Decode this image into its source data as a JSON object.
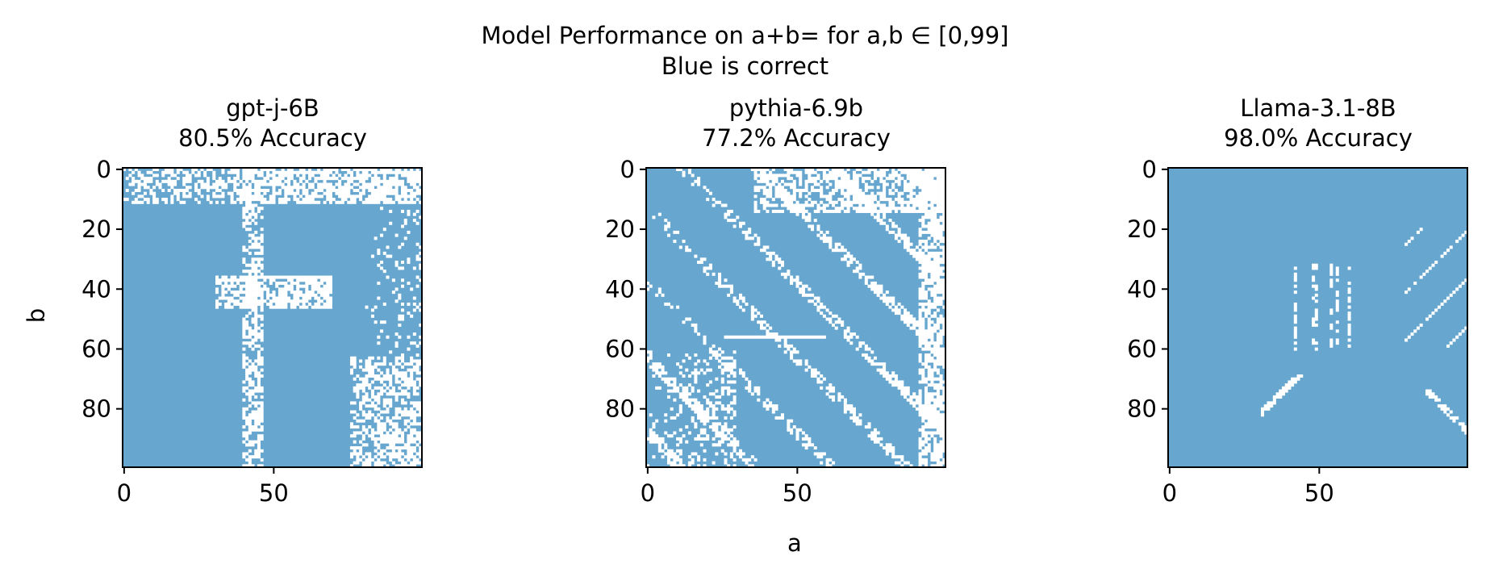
{
  "figure": {
    "suptitle_line1": "Model Performance on a+b= for a,b ∈ [0,99]",
    "suptitle_line2": "Blue is correct",
    "xlabel": "a",
    "ylabel": "b"
  },
  "colors": {
    "correct": "#67a7cf",
    "incorrect": "#ffffff",
    "axes": "#000000"
  },
  "chart_data": [
    {
      "type": "heatmap",
      "title_line1": "gpt-j-6B",
      "title_line2": "80.5% Accuracy",
      "accuracy": 0.805,
      "grid_size": 100,
      "x_ticks": [
        0,
        50
      ],
      "y_ticks": [
        0,
        20,
        40,
        60,
        80
      ],
      "xlim": [
        0,
        99
      ],
      "ylim": [
        99,
        0
      ],
      "pattern": "scattered white cells, densest in upper rows and upper-right, vertical streak near a=42"
    },
    {
      "type": "heatmap",
      "title_line1": "pythia-6.9b",
      "title_line2": "77.2% Accuracy",
      "accuracy": 0.772,
      "grid_size": 100,
      "x_ticks": [
        0,
        50
      ],
      "y_ticks": [
        0,
        20,
        40,
        60,
        80
      ],
      "xlim": [
        0,
        99
      ],
      "ylim": [
        99,
        0
      ],
      "pattern": "white cells along diagonal bands, dense lower-left and right side"
    },
    {
      "type": "heatmap",
      "title_line1": "Llama-3.1-8B",
      "title_line2": "98.0% Accuracy",
      "accuracy": 0.98,
      "grid_size": 100,
      "x_ticks": [
        0,
        50
      ],
      "y_ticks": [
        0,
        20,
        40,
        60,
        80
      ],
      "xlim": [
        0,
        99
      ],
      "ylim": [
        99,
        0
      ],
      "pattern": "sparse white cells, diagonal streaks on right side and short streaks near a=40-60"
    }
  ]
}
